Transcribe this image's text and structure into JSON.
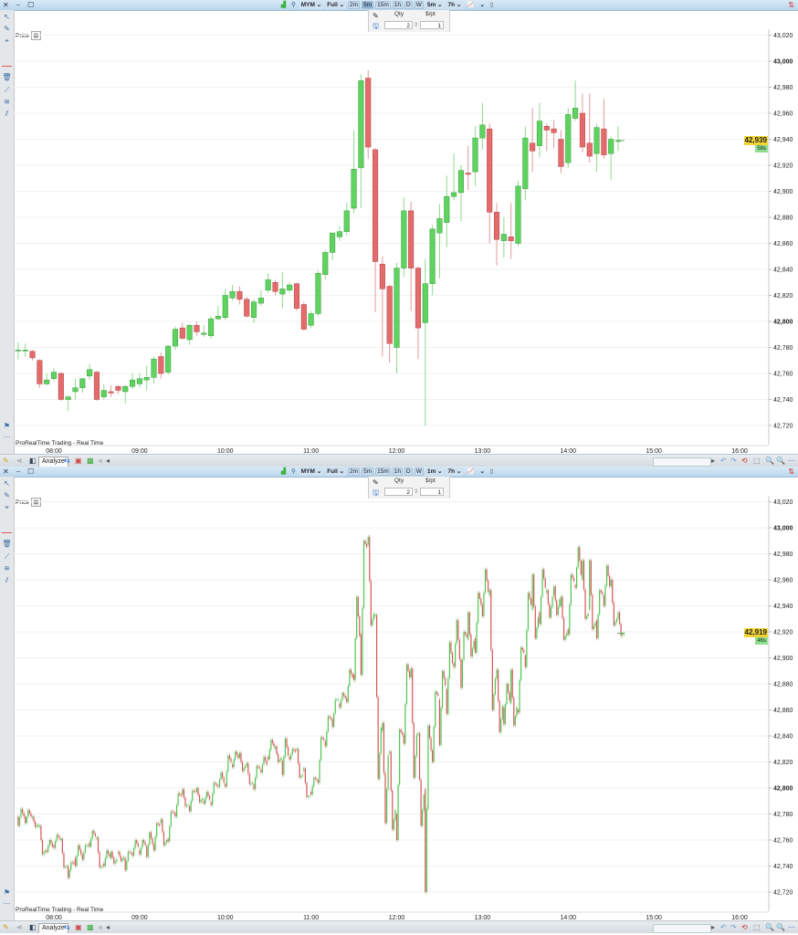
{
  "colors": {
    "up": "#5fd35f",
    "up_border": "#3c9c3c",
    "down": "#e46b6b",
    "down_border": "#b44545",
    "last_price_bg": "#f2d433",
    "countdown_bg": "#8ee08e",
    "titlebar": "#c9dff0"
  },
  "windows": [
    {
      "window_controls": "✕ ⎯ ☐",
      "toolbar": {
        "instrument": "MYM",
        "mode": "Full",
        "timeframes": [
          "2m",
          "5m",
          "15m",
          "1h",
          "D",
          "W"
        ],
        "active_timeframe": "5m",
        "interval": "5m",
        "period": "7h"
      },
      "order": {
        "qty_label": "Qty",
        "ppt_label": "$/pt",
        "qty": "2",
        "ppt": "1"
      },
      "chart_label": "Price",
      "footer": "ProRealTime Trading - Real Time",
      "analyze": "Analyze",
      "last_price": "42,939",
      "countdown": "58s"
    },
    {
      "window_controls": "✕ ⎯ ☐",
      "toolbar": {
        "instrument": "MYM",
        "mode": "Full",
        "timeframes": [
          "2m",
          "5m",
          "15m",
          "1h",
          "D",
          "W"
        ],
        "active_timeframe": "",
        "interval": "1m",
        "period": "7h"
      },
      "order": {
        "qty_label": "Qty",
        "ppt_label": "$/pt",
        "qty": "2",
        "ppt": "1"
      },
      "chart_label": "Price",
      "footer": "ProRealTime Trading - Real Time",
      "analyze": "Analyze",
      "last_price": "42,919",
      "countdown": "46s"
    }
  ],
  "chart_data": [
    {
      "type": "candlestick",
      "instrument": "MYM",
      "interval": "5m",
      "x_ticks": [
        "08:00",
        "09:00",
        "10:00",
        "11:00",
        "12:00",
        "13:00",
        "14:00",
        "15:00",
        "16:00"
      ],
      "y_ticks": [
        "43,020",
        "43,000",
        "42,980",
        "42,960",
        "42,940",
        "42,920",
        "42,900",
        "42,880",
        "42,860",
        "42,840",
        "42,820",
        "42,800",
        "42,780",
        "42,760",
        "42,740",
        "42,720"
      ],
      "ylim": [
        42712,
        43025
      ],
      "last_price": 42939,
      "candles_fields": [
        "time",
        "open",
        "high",
        "low",
        "close"
      ],
      "candles": [
        [
          "07:35",
          42778,
          42784,
          42771,
          42778
        ],
        [
          "07:40",
          42778,
          42783,
          42773,
          42778
        ],
        [
          "07:45",
          42777,
          42778,
          42770,
          42772
        ],
        [
          "07:50",
          42770,
          42771,
          42749,
          42752
        ],
        [
          "07:55",
          42752,
          42760,
          42751,
          42755
        ],
        [
          "08:00",
          42756,
          42764,
          42754,
          42761
        ],
        [
          "08:05",
          42760,
          42761,
          42739,
          42740
        ],
        [
          "08:10",
          42740,
          42743,
          42731,
          42742
        ],
        [
          "08:15",
          42746,
          42756,
          42740,
          42749
        ],
        [
          "08:20",
          42749,
          42756,
          42745,
          42756
        ],
        [
          "08:25",
          42758,
          42767,
          42755,
          42763
        ],
        [
          "08:30",
          42761,
          42762,
          42739,
          42740
        ],
        [
          "08:35",
          42742,
          42752,
          42740,
          42747
        ],
        [
          "08:40",
          42746,
          42751,
          42742,
          42745
        ],
        [
          "08:45",
          42750,
          42751,
          42744,
          42747
        ],
        [
          "08:50",
          42746,
          42751,
          42737,
          42750
        ],
        [
          "08:55",
          42750,
          42760,
          42748,
          42755
        ],
        [
          "09:00",
          42752,
          42760,
          42749,
          42756
        ],
        [
          "09:05",
          42755,
          42766,
          42747,
          42757
        ],
        [
          "09:10",
          42757,
          42773,
          42752,
          42771
        ],
        [
          "09:15",
          42773,
          42776,
          42756,
          42760
        ],
        [
          "09:20",
          42761,
          42782,
          42759,
          42781
        ],
        [
          "09:25",
          42781,
          42796,
          42778,
          42794
        ],
        [
          "09:30",
          42795,
          42799,
          42786,
          42787
        ],
        [
          "09:35",
          42786,
          42798,
          42782,
          42797
        ],
        [
          "09:40",
          42797,
          42800,
          42789,
          42792
        ],
        [
          "09:45",
          42790,
          42797,
          42788,
          42791
        ],
        [
          "09:50",
          42789,
          42804,
          42787,
          42802
        ],
        [
          "09:55",
          42802,
          42812,
          42801,
          42804
        ],
        [
          "10:00",
          42803,
          42825,
          42801,
          42820
        ],
        [
          "10:05",
          42818,
          42828,
          42816,
          42823
        ],
        [
          "10:10",
          42823,
          42827,
          42813,
          42817
        ],
        [
          "10:15",
          42817,
          42819,
          42803,
          42804
        ],
        [
          "10:20",
          42803,
          42817,
          42799,
          42815
        ],
        [
          "10:25",
          42814,
          42824,
          42812,
          42818
        ],
        [
          "10:30",
          42824,
          42837,
          42822,
          42832
        ],
        [
          "10:35",
          42830,
          42832,
          42820,
          42823
        ],
        [
          "10:40",
          42821,
          42838,
          42810,
          42825
        ],
        [
          "10:45",
          42824,
          42830,
          42822,
          42828
        ],
        [
          "10:50",
          42829,
          42830,
          42808,
          42810
        ],
        [
          "10:55",
          42813,
          42815,
          42793,
          42794
        ],
        [
          "11:00",
          42797,
          42808,
          42795,
          42806
        ],
        [
          "11:05",
          42806,
          42839,
          42804,
          42837
        ],
        [
          "11:10",
          42836,
          42855,
          42832,
          42853
        ],
        [
          "11:15",
          42853,
          42868,
          42847,
          42868
        ],
        [
          "11:20",
          42865,
          42873,
          42862,
          42869
        ],
        [
          "11:25",
          42869,
          42891,
          42866,
          42885
        ],
        [
          "11:30",
          42887,
          42947,
          42883,
          42917
        ],
        [
          "11:35",
          42918,
          42990,
          42887,
          42985
        ],
        [
          "11:40",
          42987,
          42993,
          42925,
          42934
        ],
        [
          "11:45",
          42932,
          42933,
          42807,
          42846
        ],
        [
          "11:50",
          42844,
          42850,
          42773,
          42825
        ],
        [
          "11:55",
          42827,
          42828,
          42768,
          42783
        ],
        [
          "12:00",
          42780,
          42845,
          42760,
          42841
        ],
        [
          "12:05",
          42841,
          42895,
          42834,
          42885
        ],
        [
          "12:10",
          42885,
          42892,
          42808,
          42841
        ],
        [
          "12:15",
          42841,
          42842,
          42771,
          42795
        ],
        [
          "12:20",
          42799,
          42848,
          42720,
          42829
        ],
        [
          "12:25",
          42829,
          42874,
          42820,
          42871
        ],
        [
          "12:30",
          42868,
          42890,
          42833,
          42879
        ],
        [
          "12:35",
          42876,
          42912,
          42857,
          42896
        ],
        [
          "12:40",
          42896,
          42929,
          42893,
          42899
        ],
        [
          "12:45",
          42899,
          42920,
          42877,
          42916
        ],
        [
          "12:50",
          42914,
          42935,
          42901,
          42913
        ],
        [
          "12:55",
          42915,
          42950,
          42904,
          42941
        ],
        [
          "13:00",
          42941,
          42968,
          42932,
          42951
        ],
        [
          "13:05",
          42948,
          42952,
          42860,
          42884
        ],
        [
          "13:10",
          42884,
          42891,
          42843,
          42863
        ],
        [
          "13:15",
          42862,
          42880,
          42849,
          42867
        ],
        [
          "13:20",
          42865,
          42891,
          42848,
          42862
        ],
        [
          "13:25",
          42860,
          42908,
          42858,
          42904
        ],
        [
          "13:30",
          42902,
          42950,
          42893,
          42941
        ],
        [
          "13:35",
          42937,
          42964,
          42915,
          42931
        ],
        [
          "13:40",
          42935,
          42968,
          42926,
          42954
        ],
        [
          "13:45",
          42950,
          42952,
          42931,
          42947
        ],
        [
          "13:50",
          42948,
          42955,
          42933,
          42945
        ],
        [
          "13:55",
          42940,
          42947,
          42914,
          42919
        ],
        [
          "14:00",
          42922,
          42964,
          42918,
          42959
        ],
        [
          "14:05",
          42956,
          42985,
          42954,
          42964
        ],
        [
          "14:10",
          42960,
          42975,
          42930,
          42934
        ],
        [
          "14:15",
          42937,
          42975,
          42922,
          42927
        ],
        [
          "14:20",
          42929,
          42952,
          42915,
          42949
        ],
        [
          "14:25",
          42948,
          42971,
          42925,
          42928
        ],
        [
          "14:30",
          42929,
          42942,
          42909,
          42940
        ],
        [
          "14:35",
          42939,
          42950,
          42931,
          42939
        ]
      ]
    },
    {
      "type": "candlestick",
      "instrument": "MYM",
      "interval": "1m",
      "x_ticks": [
        "08:00",
        "09:00",
        "10:00",
        "11:00",
        "12:00",
        "13:00",
        "14:00",
        "15:00",
        "16:00"
      ],
      "y_ticks": [
        "43,020",
        "43,000",
        "42,980",
        "42,960",
        "42,940",
        "42,920",
        "42,900",
        "42,880",
        "42,860",
        "42,840",
        "42,820",
        "42,800",
        "42,780",
        "42,760",
        "42,740",
        "42,720"
      ],
      "ylim": [
        42712,
        43025
      ],
      "last_price": 42919,
      "candles_fields": [
        "time",
        "open",
        "high",
        "low",
        "close"
      ],
      "candles": "same 5-minute path as chart 1 except the final bars",
      "final_candles": [
        [
          "14:25",
          42948,
          42971,
          42940,
          42955
        ],
        [
          "14:30",
          42955,
          42960,
          42925,
          42930
        ],
        [
          "14:35",
          42930,
          42935,
          42917,
          42919
        ]
      ]
    }
  ]
}
